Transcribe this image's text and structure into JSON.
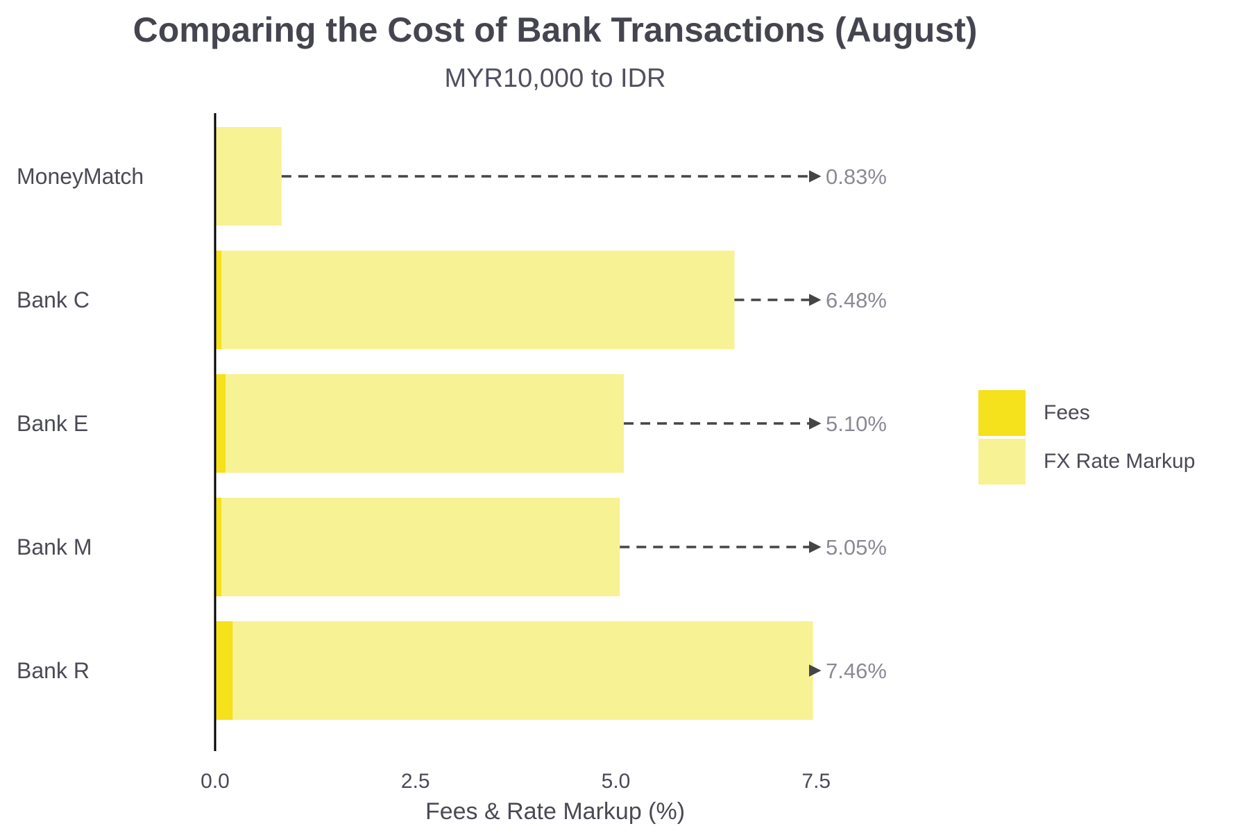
{
  "chart_data": {
    "type": "bar",
    "orientation": "horizontal",
    "stacked": true,
    "title": "Comparing the Cost of Bank Transactions (August)",
    "subtitle": "MYR10,000 to IDR",
    "xlabel": "Fees & Rate Markup (%)",
    "ylabel": "",
    "xlim": [
      0,
      7.5
    ],
    "xticks": [
      "0.0",
      "2.5",
      "5.0",
      "7.5"
    ],
    "categories": [
      "MoneyMatch",
      "Bank C",
      "Bank E",
      "Bank M",
      "Bank R"
    ],
    "series": [
      {
        "name": "Fees",
        "values": [
          0.0,
          0.08,
          0.13,
          0.08,
          0.22
        ],
        "color": "#f5e11c"
      },
      {
        "name": "FX Rate Markup",
        "values": [
          0.83,
          6.4,
          4.97,
          4.97,
          7.24
        ],
        "color": "#f7f293"
      }
    ],
    "totals": [
      "0.83%",
      "6.48%",
      "5.10%",
      "5.05%",
      "7.46%"
    ],
    "grid": false,
    "legend_position": "right",
    "annotation_style": "dashed arrow to total label"
  }
}
